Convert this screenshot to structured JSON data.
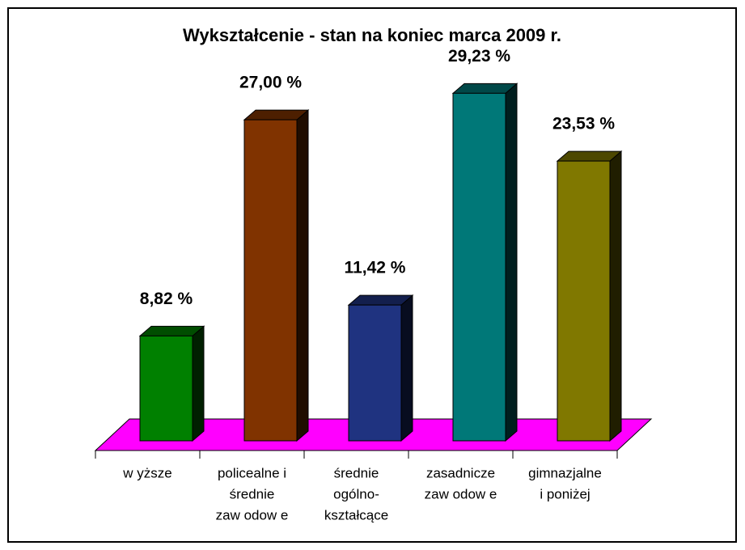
{
  "chart_data": {
    "type": "bar3d",
    "title": "Wykształcenie - stan na koniec marca 2009 r.",
    "categories": [
      [
        "w yższe"
      ],
      [
        "policealne i",
        "średnie",
        "zaw odow e"
      ],
      [
        "średnie",
        "ogólno-",
        "kształcące"
      ],
      [
        "zasadnicze",
        "zaw odow e"
      ],
      [
        "gimnazjalne",
        "i poniżej"
      ]
    ],
    "values": [
      8.82,
      27.0,
      11.42,
      29.23,
      23.53
    ],
    "value_labels": [
      "8,82 %",
      "27,00 %",
      "11,42 %",
      "29,23 %",
      "23,53 %"
    ],
    "colors": [
      "#008000",
      "#803300",
      "#1f3380",
      "#007878",
      "#807800"
    ],
    "floor_color": "#ff00ff"
  }
}
